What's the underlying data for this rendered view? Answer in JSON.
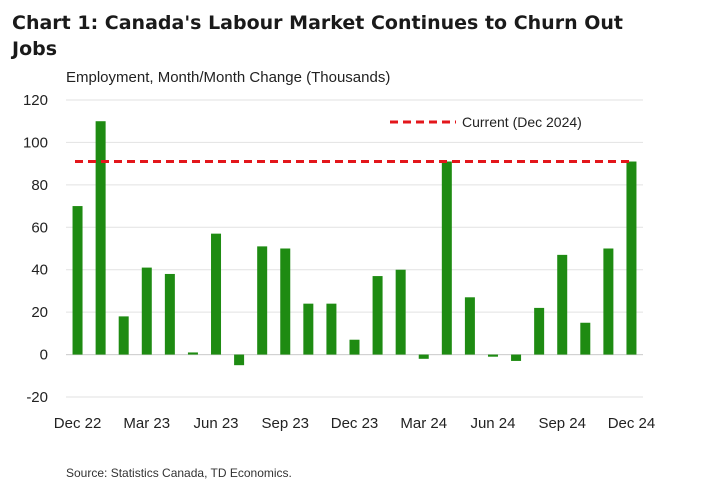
{
  "chart_data": {
    "type": "bar",
    "title": "Chart 1: Canada's Labour Market Continues to Churn Out Jobs",
    "subtitle": "Employment, Month/Month Change (Thousands)",
    "source": "Source: Statistics Canada, TD Economics.",
    "categories": [
      "Dec 22",
      "Jan 23",
      "Feb 23",
      "Mar 23",
      "Apr 23",
      "May 23",
      "Jun 23",
      "Jul 23",
      "Aug 23",
      "Sep 23",
      "Oct 23",
      "Nov 23",
      "Dec 23",
      "Jan 24",
      "Feb 24",
      "Mar 24",
      "Apr 24",
      "May 24",
      "Jun 24",
      "Jul 24",
      "Aug 24",
      "Sep 24",
      "Oct 24",
      "Nov 24",
      "Dec 24"
    ],
    "x_tick_labels": [
      "Dec 22",
      "Mar 23",
      "Jun 23",
      "Sep 23",
      "Dec 23",
      "Mar 24",
      "Jun 24",
      "Sep 24",
      "Dec 24"
    ],
    "series": [
      {
        "values": [
          70,
          110,
          18,
          41,
          38,
          1,
          57,
          -5,
          51,
          50,
          24,
          24,
          7,
          37,
          40,
          -2,
          91,
          27,
          -1,
          -3,
          22,
          47,
          15,
          50,
          91
        ],
        "color": "#1e8b12"
      }
    ],
    "reference_line": {
      "name": "Current (Dec 2024)",
      "value": 91,
      "color": "#e3161b",
      "style": "dashed"
    },
    "ylim": [
      -20,
      120
    ],
    "yticks": [
      -20,
      0,
      20,
      40,
      60,
      80,
      100,
      120
    ],
    "grid": true,
    "legend_position": "top-right"
  }
}
